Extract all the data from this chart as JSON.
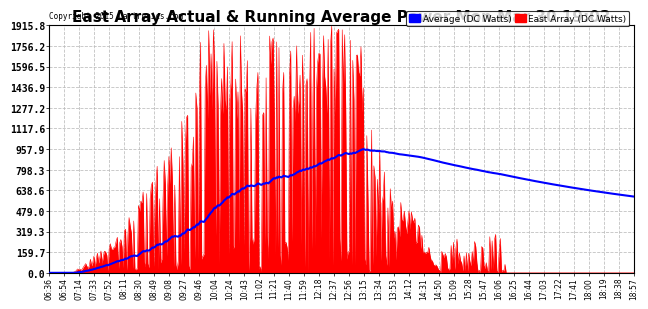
{
  "title": "East Array Actual & Running Average Power Mon Mar 30 19:03",
  "copyright": "Copyright 2015 Cartronics.com",
  "legend_average": "Average (DC Watts)",
  "legend_east": "East Array (DC Watts)",
  "yticks": [
    0.0,
    159.7,
    319.3,
    479.0,
    638.6,
    798.3,
    957.9,
    1117.6,
    1277.2,
    1436.9,
    1596.5,
    1756.2,
    1915.8
  ],
  "ymax": 1915.8,
  "ymin": 0.0,
  "background_color": "#ffffff",
  "east_array_color": "#ff0000",
  "average_color": "#0000ff",
  "grid_color": "#bbbbbb",
  "title_fontsize": 11,
  "xlabel_fontsize": 5.5,
  "ylabel_fontsize": 7,
  "time_labels": [
    "06:36",
    "06:54",
    "07:14",
    "07:33",
    "07:52",
    "08:11",
    "08:30",
    "08:49",
    "09:08",
    "09:27",
    "09:46",
    "10:04",
    "10:24",
    "10:43",
    "11:02",
    "11:21",
    "11:40",
    "11:59",
    "12:18",
    "12:37",
    "12:56",
    "13:15",
    "13:34",
    "13:53",
    "14:12",
    "14:31",
    "14:50",
    "15:09",
    "15:28",
    "15:47",
    "16:06",
    "16:25",
    "16:44",
    "17:03",
    "17:22",
    "17:41",
    "18:00",
    "18:19",
    "18:38",
    "18:57"
  ]
}
